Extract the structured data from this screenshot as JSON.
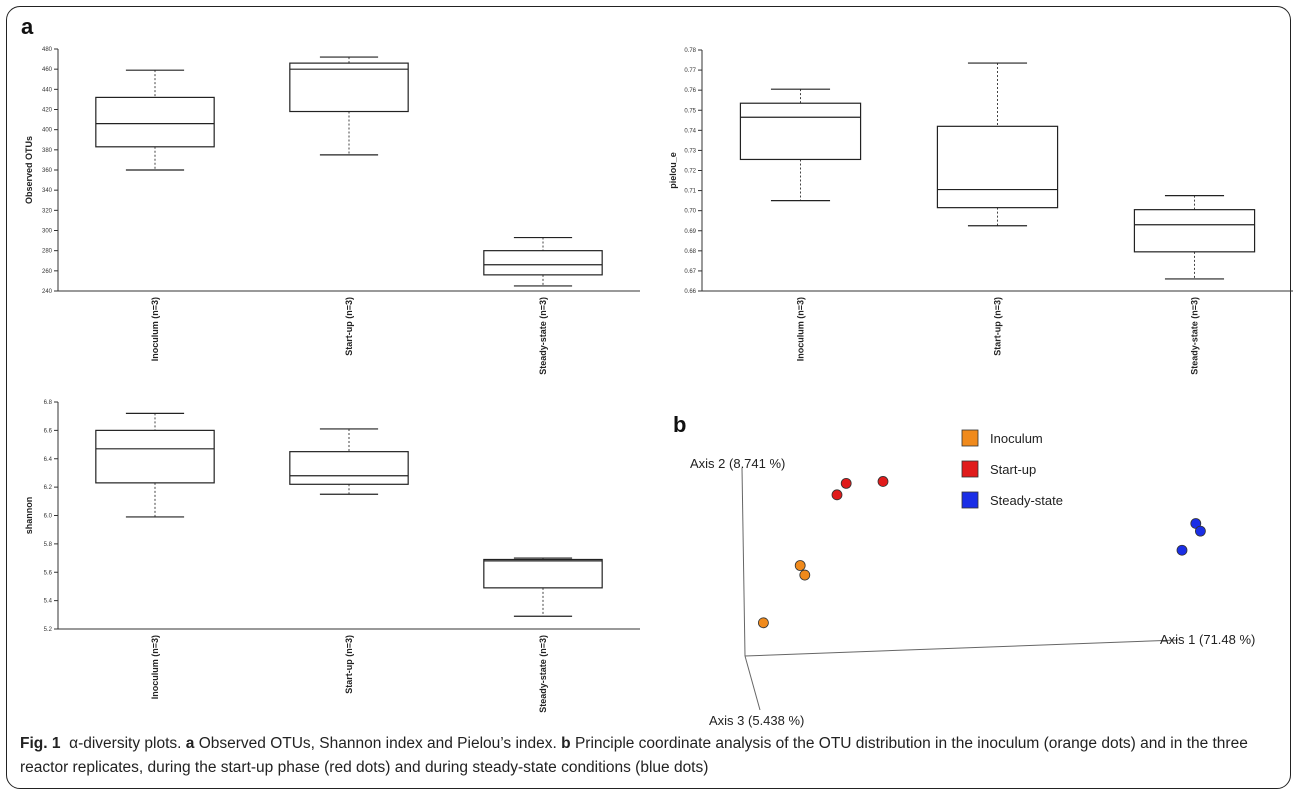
{
  "panel_labels": {
    "a": "a",
    "b": "b"
  },
  "caption": {
    "fig_label": "Fig. 1",
    "title": "α-diversity plots.",
    "a_label": "a",
    "a_text": "Observed OTUs, Shannon index and Pielou’s index.",
    "b_label": "b",
    "b_text": "Principle coordinate analysis of the OTU distribution in the inoculum (orange dots) and in the three reactor replicates, during the start-up phase (red dots) and during steady-state conditions (blue dots)"
  },
  "colors": {
    "inoculum": "#f08a1c",
    "startup": "#e01b1b",
    "steady": "#1a2ee6"
  },
  "chart_data": [
    {
      "id": "otus",
      "type": "box",
      "ylabel": "Observed OTUs",
      "ylim": [
        240,
        480
      ],
      "yticks": [
        "240",
        "260",
        "280",
        "300",
        "320",
        "340",
        "360",
        "380",
        "400",
        "420",
        "440",
        "460",
        "480"
      ],
      "categories": [
        "Inoculum (n=3)",
        "Start-up (n=3)",
        "Steady-state (n=3)"
      ],
      "boxes": [
        {
          "min": 360,
          "q1": 383,
          "median": 406,
          "q3": 432,
          "max": 459
        },
        {
          "min": 375,
          "q1": 418,
          "median": 460,
          "q3": 466,
          "max": 472
        },
        {
          "min": 245,
          "q1": 256,
          "median": 266,
          "q3": 280,
          "max": 293
        }
      ]
    },
    {
      "id": "pielou",
      "type": "box",
      "ylabel": "pielou_e",
      "ylim": [
        0.66,
        0.78
      ],
      "yticks": [
        "0.66",
        "0.67",
        "0.68",
        "0.69",
        "0.70",
        "0.71",
        "0.72",
        "0.73",
        "0.74",
        "0.75",
        "0.76",
        "0.77",
        "0.78"
      ],
      "categories": [
        "Inoculum (n=3)",
        "Start-up (n=3)",
        "Steady-state (n=3)"
      ],
      "boxes": [
        {
          "min": 0.705,
          "q1": 0.7255,
          "median": 0.7465,
          "q3": 0.7535,
          "max": 0.7605
        },
        {
          "min": 0.6925,
          "q1": 0.7015,
          "median": 0.7105,
          "q3": 0.742,
          "max": 0.7735
        },
        {
          "min": 0.666,
          "q1": 0.6795,
          "median": 0.693,
          "q3": 0.7005,
          "max": 0.7075
        }
      ]
    },
    {
      "id": "shannon",
      "type": "box",
      "ylabel": "shannon",
      "ylim": [
        5.2,
        6.8
      ],
      "yticks": [
        "5.2",
        "5.4",
        "5.6",
        "5.8",
        "6.0",
        "6.2",
        "6.4",
        "6.6",
        "6.8"
      ],
      "categories": [
        "Inoculum (n=3)",
        "Start-up (n=3)",
        "Steady-state (n=3)"
      ],
      "boxes": [
        {
          "min": 5.99,
          "q1": 6.23,
          "median": 6.47,
          "q3": 6.6,
          "max": 6.72
        },
        {
          "min": 6.15,
          "q1": 6.22,
          "median": 6.28,
          "q3": 6.45,
          "max": 6.61
        },
        {
          "min": 5.29,
          "q1": 5.49,
          "median": 5.68,
          "q3": 5.69,
          "max": 5.7
        }
      ]
    },
    {
      "id": "pcoa",
      "type": "scatter",
      "axis_labels": {
        "axis1": "Axis 1 (71.48 %)",
        "axis2": "Axis 2 (8.741 %)",
        "axis3": "Axis 3 (5.438 %)"
      },
      "legend": [
        "Inoculum",
        "Start-up",
        "Steady-state"
      ],
      "series": [
        {
          "name": "Inoculum",
          "points": [
            [
              0.04,
              0.2
            ],
            [
              0.12,
              0.5
            ],
            [
              0.13,
              0.45
            ]
          ]
        },
        {
          "name": "Start-up",
          "points": [
            [
              0.2,
              0.87
            ],
            [
              0.22,
              0.93
            ],
            [
              0.3,
              0.94
            ]
          ]
        },
        {
          "name": "Steady-state",
          "points": [
            [
              0.95,
              0.58
            ],
            [
              0.98,
              0.72
            ],
            [
              0.99,
              0.68
            ]
          ]
        }
      ]
    }
  ]
}
